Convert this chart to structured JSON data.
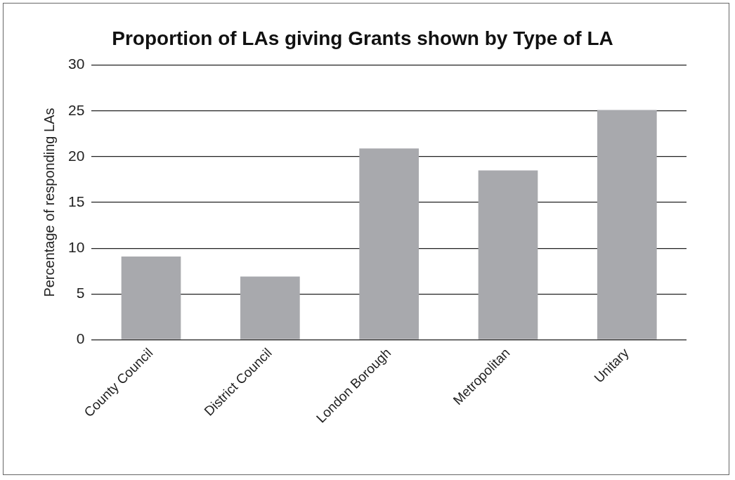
{
  "chart_data": {
    "type": "bar",
    "title": "Proportion of LAs giving Grants shown by Type of LA",
    "ylabel": "Percentage of responding LAs",
    "categories": [
      "County Council",
      "District Council",
      "London Borough",
      "Metropolitan",
      "Unitary"
    ],
    "values": [
      9.1,
      6.9,
      20.9,
      18.5,
      25.1
    ],
    "color": "#a8a9ad",
    "ylim": [
      0,
      30
    ],
    "yticks": [
      0,
      5,
      10,
      15,
      20,
      25,
      30
    ],
    "grid": "y",
    "legend": false
  }
}
